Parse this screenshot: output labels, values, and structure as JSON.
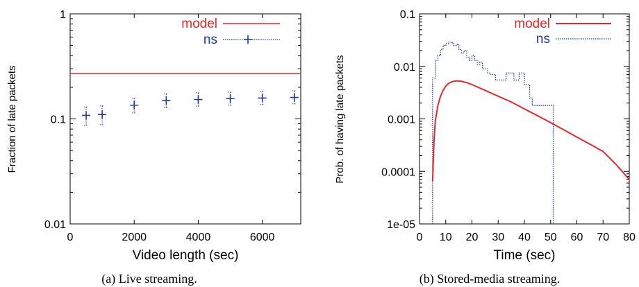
{
  "colors": {
    "model": "#e8262b",
    "ns": "#24379a"
  },
  "chart_data": [
    {
      "type": "scatter",
      "caption": "(a) Live streaming.",
      "xlabel": "Video length (sec)",
      "ylabel": "Fraction of late packets",
      "xlim": [
        0,
        7200
      ],
      "ylim": [
        0.01,
        1
      ],
      "yscale": "log",
      "x_ticks": [
        0,
        2000,
        4000,
        6000
      ],
      "x_tick_labels": [
        "0",
        "2000",
        "4000",
        "6000"
      ],
      "y_ticks": [
        0.01,
        0.1,
        1
      ],
      "y_tick_labels": [
        "0.01",
        "0.1",
        "1"
      ],
      "legend_position": "top-right",
      "series": [
        {
          "name": "model",
          "kind": "hline",
          "y": 0.27
        },
        {
          "name": "ns",
          "kind": "errorbar",
          "points": [
            {
              "x": 500,
              "y": 0.108,
              "lo": 0.086,
              "hi": 0.13
            },
            {
              "x": 1000,
              "y": 0.11,
              "lo": 0.088,
              "hi": 0.133
            },
            {
              "x": 2000,
              "y": 0.135,
              "lo": 0.114,
              "hi": 0.158
            },
            {
              "x": 3000,
              "y": 0.15,
              "lo": 0.128,
              "hi": 0.173
            },
            {
              "x": 4000,
              "y": 0.153,
              "lo": 0.132,
              "hi": 0.177
            },
            {
              "x": 5000,
              "y": 0.156,
              "lo": 0.135,
              "hi": 0.18
            },
            {
              "x": 6000,
              "y": 0.158,
              "lo": 0.137,
              "hi": 0.183
            },
            {
              "x": 7000,
              "y": 0.16,
              "lo": 0.139,
              "hi": 0.185
            }
          ]
        }
      ]
    },
    {
      "type": "line",
      "caption": "(b) Stored-media streaming.",
      "xlabel": "Time (sec)",
      "ylabel": "Prob. of having late packets",
      "xlim": [
        0,
        80
      ],
      "ylim": [
        1e-05,
        0.1
      ],
      "yscale": "log",
      "x_ticks": [
        0,
        10,
        20,
        30,
        40,
        50,
        60,
        70,
        80
      ],
      "x_tick_labels": [
        "0",
        "10",
        "20",
        "30",
        "40",
        "50",
        "60",
        "70",
        "80"
      ],
      "y_ticks": [
        1e-05,
        0.0001,
        0.001,
        0.01,
        0.1
      ],
      "y_tick_labels": [
        "1e-05",
        "0.0001",
        "0.001",
        "0.01",
        "0.1"
      ],
      "legend_position": "top-right",
      "series": [
        {
          "name": "model",
          "kind": "line",
          "points": [
            [
              5,
              6.5e-05
            ],
            [
              5.5,
              0.00035
            ],
            [
              6,
              0.0009
            ],
            [
              7,
              0.0018
            ],
            [
              8,
              0.0027
            ],
            [
              9,
              0.0035
            ],
            [
              10,
              0.0042
            ],
            [
              11,
              0.0047
            ],
            [
              12,
              0.005
            ],
            [
              13,
              0.0052
            ],
            [
              14,
              0.0053
            ],
            [
              16,
              0.0052
            ],
            [
              18,
              0.0049
            ],
            [
              20,
              0.0045
            ],
            [
              25,
              0.0035
            ],
            [
              30,
              0.0027
            ],
            [
              35,
              0.0021
            ],
            [
              40,
              0.00155
            ],
            [
              45,
              0.00115
            ],
            [
              50,
              0.00085
            ],
            [
              55,
              0.00062
            ],
            [
              60,
              0.00045
            ],
            [
              65,
              0.00033
            ],
            [
              70,
              0.00024
            ],
            [
              75,
              0.000135
            ],
            [
              80,
              7e-05
            ]
          ]
        },
        {
          "name": "ns",
          "kind": "step",
          "points": [
            [
              5,
              1e-05
            ],
            [
              5,
              0.006
            ],
            [
              6,
              0.013
            ],
            [
              7,
              0.016
            ],
            [
              8,
              0.021
            ],
            [
              9,
              0.025
            ],
            [
              10,
              0.027
            ],
            [
              11,
              0.029
            ],
            [
              12,
              0.028
            ],
            [
              13,
              0.025
            ],
            [
              14,
              0.026
            ],
            [
              15,
              0.021
            ],
            [
              16,
              0.018
            ],
            [
              17,
              0.02
            ],
            [
              18,
              0.015
            ],
            [
              19,
              0.013
            ],
            [
              20,
              0.016
            ],
            [
              21,
              0.013
            ],
            [
              22,
              0.011
            ],
            [
              23,
              0.012
            ],
            [
              24,
              0.009
            ],
            [
              25,
              0.009
            ],
            [
              26,
              0.0075
            ],
            [
              27,
              0.007
            ],
            [
              29,
              0.0055
            ],
            [
              33,
              0.0075
            ],
            [
              36,
              0.0055
            ],
            [
              38,
              0.0075
            ],
            [
              40,
              0.0045
            ],
            [
              42,
              0.0025
            ],
            [
              43,
              0.0018
            ],
            [
              51,
              0.0018
            ],
            [
              51,
              1e-05
            ]
          ]
        }
      ]
    }
  ]
}
